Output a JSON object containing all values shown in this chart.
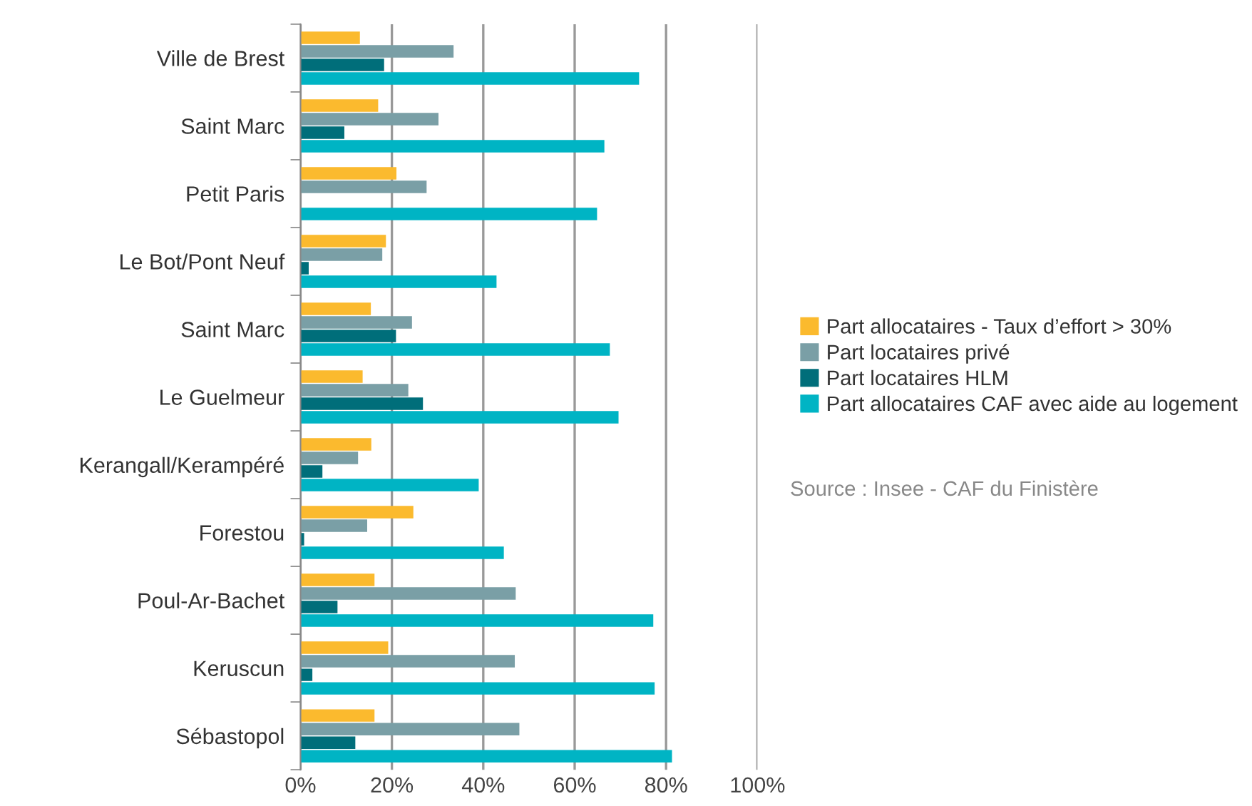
{
  "chart_data": {
    "type": "bar",
    "orientation": "horizontal",
    "categories": [
      "Ville de Brest",
      "Saint Marc",
      "Petit Paris",
      "Le Bot/Pont Neuf",
      "Saint Marc",
      "Le Guelmeur",
      "Kerangall/Kerampéré",
      "Forestou",
      "Poul-Ar-Bachet",
      "Keruscun",
      "Sébastopol"
    ],
    "series": [
      {
        "name": "Part allocataires - Taux d’effort > 30%",
        "color": "#fbba2e",
        "values": [
          13,
          17,
          21,
          18.7,
          15.4,
          13.6,
          15.5,
          24.7,
          16.2,
          19.2,
          16.2
        ]
      },
      {
        "name": "Part locataires privé",
        "color": "#7a9fa6",
        "values": [
          33.5,
          30.2,
          27.6,
          17.9,
          24.4,
          23.6,
          12.6,
          14.6,
          47.1,
          46.9,
          47.9
        ]
      },
      {
        "name": "Part locataires HLM",
        "color": "#006e7a",
        "values": [
          18.3,
          9.6,
          null,
          1.8,
          20.9,
          26.8,
          4.8,
          0.8,
          8.1,
          2.6,
          12.0
        ]
      },
      {
        "name": "Part allocataires CAF avec aide au logement",
        "color": "#00b4c4",
        "values": [
          74.1,
          66.5,
          64.9,
          42.9,
          67.7,
          69.6,
          39.0,
          44.5,
          77.2,
          77.5,
          81.3
        ]
      }
    ],
    "xlim": [
      0,
      100
    ],
    "xticks": [
      {
        "value": 0,
        "label": "0%"
      },
      {
        "value": 20,
        "label": "20%"
      },
      {
        "value": 40,
        "label": "40%"
      },
      {
        "value": 60,
        "label": "60%"
      },
      {
        "value": 80,
        "label": "80%"
      },
      {
        "value": 100,
        "label": "100%"
      }
    ],
    "grid": "x",
    "legend": "right",
    "annotations": [
      "Source : Insee - CAF du Finistère"
    ]
  }
}
